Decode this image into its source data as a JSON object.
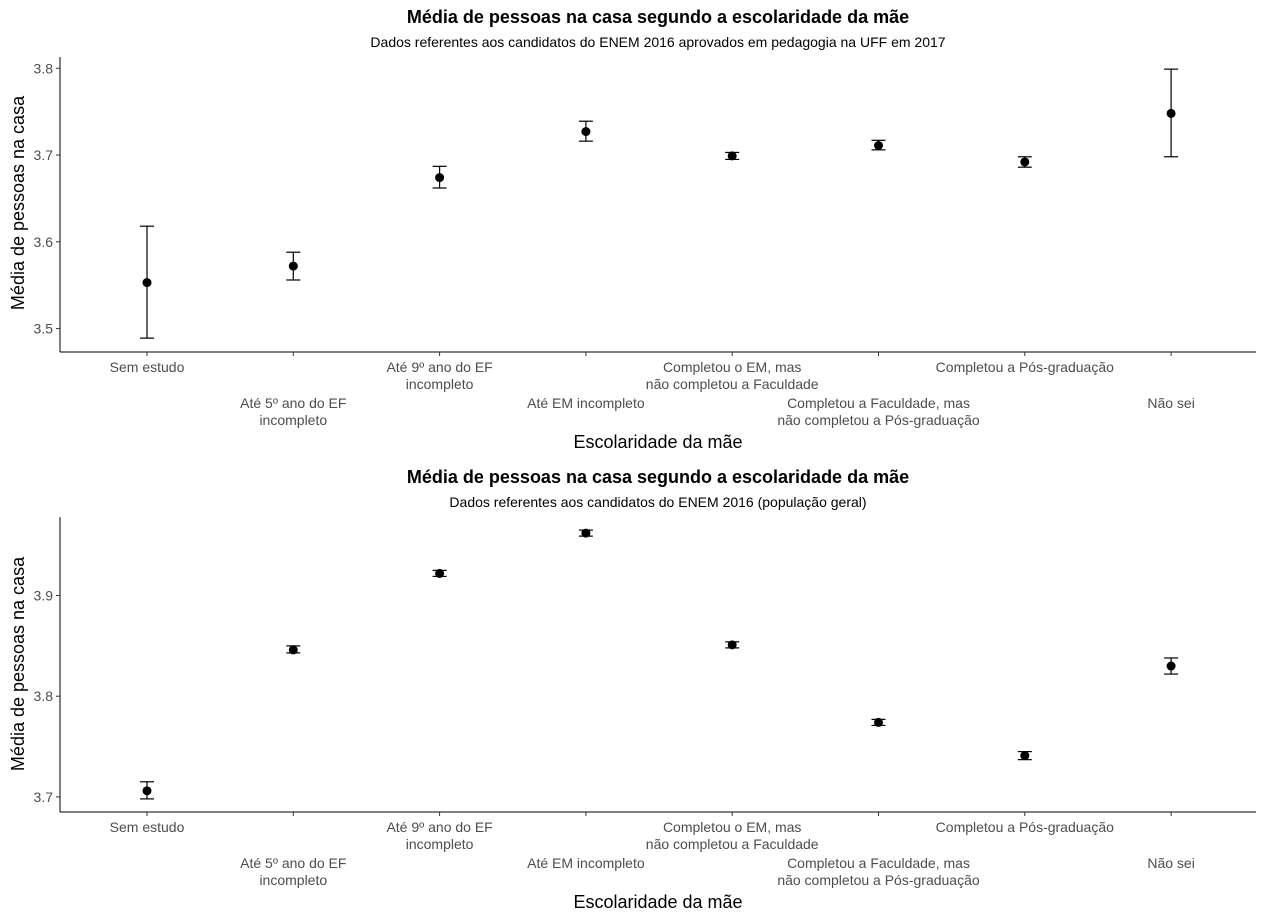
{
  "chart_data": [
    {
      "type": "scatter",
      "title": "Média de pessoas na casa segundo a escolaridade da mãe",
      "subtitle": "Dados referentes aos candidatos do ENEM 2016 aprovados em pedagogia na UFF em 2017",
      "xlabel": "Escolaridade da mãe",
      "ylabel": "Média de pessoas na casa",
      "categories": [
        "Sem estudo",
        "Até 5º ano do EF\nincompleto",
        "Até 9º ano do EF\nincompleto",
        "Até EM incompleto",
        "Completou o EM, mas\nnão completou a Faculdade",
        "Completou a Faculdade, mas\nnão completou a Pós-graduação",
        "Completou a Pós-graduação",
        "Não sei"
      ],
      "values": [
        3.553,
        3.572,
        3.674,
        3.727,
        3.699,
        3.711,
        3.692,
        3.748
      ],
      "lower": [
        3.489,
        3.556,
        3.662,
        3.716,
        3.695,
        3.706,
        3.686,
        3.698
      ],
      "upper": [
        3.618,
        3.588,
        3.687,
        3.739,
        3.703,
        3.717,
        3.698,
        3.799
      ],
      "yticks": [
        3.5,
        3.6,
        3.7,
        3.8
      ],
      "ylim": [
        3.473,
        3.813
      ]
    },
    {
      "type": "scatter",
      "title": "Média de pessoas na casa segundo a escolaridade da mãe",
      "subtitle": "Dados referentes aos candidatos do ENEM 2016 (população geral)",
      "xlabel": "Escolaridade da mãe",
      "ylabel": "Média de pessoas na casa",
      "categories": [
        "Sem estudo",
        "Até 5º ano do EF\nincompleto",
        "Até 9º ano do EF\nincompleto",
        "Até EM incompleto",
        "Completou o EM, mas\nnão completou a Faculdade",
        "Completou a Faculdade, mas\nnão completou a Pós-graduação",
        "Completou a Pós-graduação",
        "Não sei"
      ],
      "values": [
        3.706,
        3.846,
        3.922,
        3.962,
        3.851,
        3.774,
        3.741,
        3.83
      ],
      "lower": [
        3.698,
        3.843,
        3.919,
        3.959,
        3.848,
        3.771,
        3.737,
        3.822
      ],
      "upper": [
        3.715,
        3.85,
        3.925,
        3.965,
        3.854,
        3.777,
        3.745,
        3.838
      ],
      "yticks": [
        3.7,
        3.8,
        3.9
      ],
      "ylim": [
        3.685,
        3.978
      ]
    }
  ]
}
